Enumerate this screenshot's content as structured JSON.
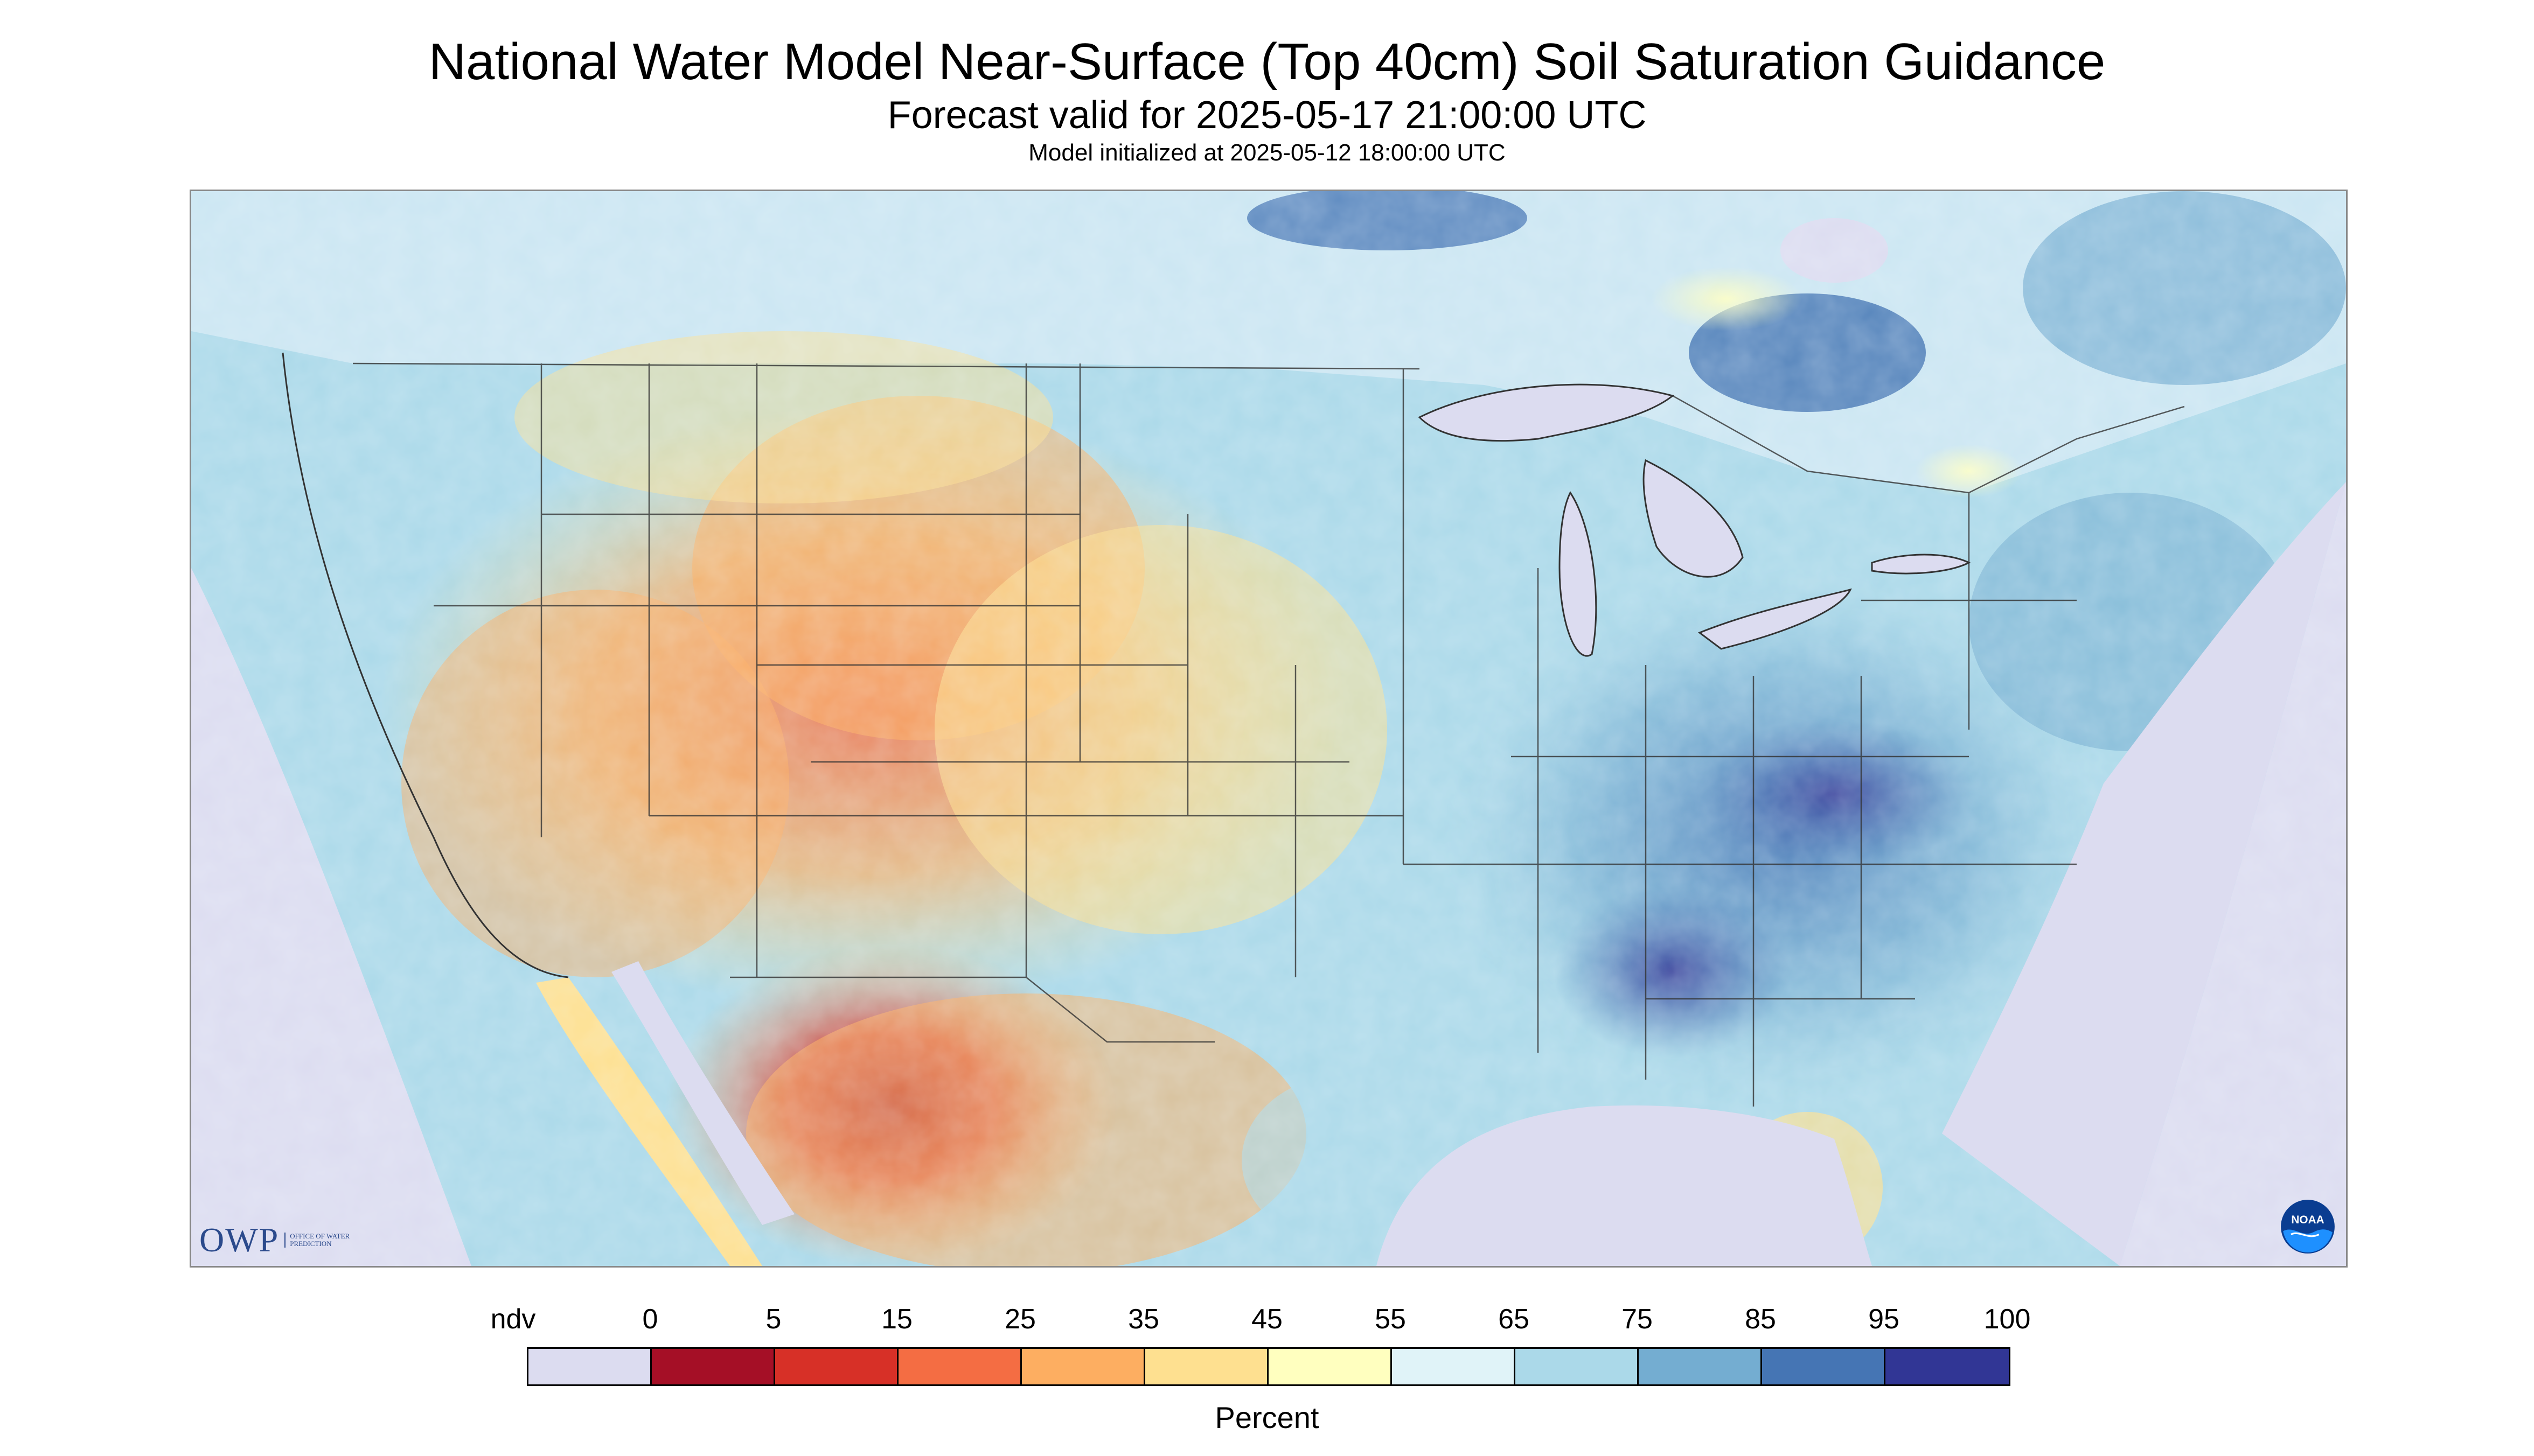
{
  "header": {
    "title": "National Water Model Near-Surface (Top 40cm) Soil Saturation Guidance",
    "subtitle": "Forecast valid for 2025-05-17 21:00:00 UTC",
    "init": "Model initialized at 2025-05-12 18:00:00 UTC"
  },
  "logos": {
    "owp_text": "OWP",
    "owp_subtext": "OFFICE OF WATER PREDICTION",
    "noaa_text": "NOAA"
  },
  "legend": {
    "labels": [
      "ndv",
      "0",
      "5",
      "15",
      "25",
      "35",
      "45",
      "55",
      "65",
      "75",
      "85",
      "95",
      "100"
    ],
    "colors": [
      "#dcdcf0",
      "#a50f26",
      "#d73027",
      "#f46d43",
      "#fdae61",
      "#fee090",
      "#ffffbf",
      "#e0f3f8",
      "#abd9e9",
      "#74add1",
      "#4575b4",
      "#313695"
    ],
    "unit": "Percent"
  },
  "map": {
    "nodata_color": "#dcdcf0",
    "water_color": "#dcdcf0",
    "border_color": "#333333"
  }
}
